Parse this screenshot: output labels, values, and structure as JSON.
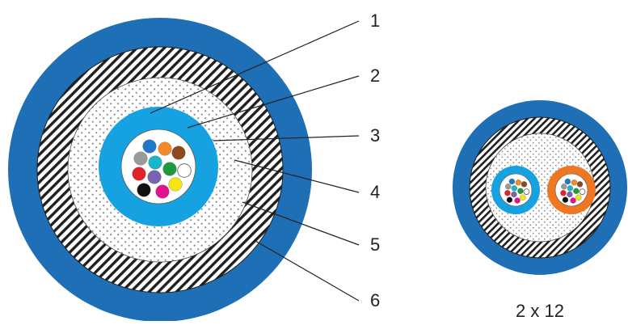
{
  "colors": {
    "jacket": "#1e6fb5",
    "armor_dark": "#1f1f1f",
    "armor_light": "#ffffff",
    "filler_bg": "#ffffff",
    "filler_dot": "#8a8a8a",
    "buffer_tube": "#16a2e0",
    "tube_orange": "#ef7622",
    "core_bg": "#ffffff",
    "leader": "#222222",
    "label_text": "#222222"
  },
  "labels": [
    "1",
    "2",
    "3",
    "4",
    "5",
    "6"
  ],
  "fibers": [
    {
      "name": "blue-fiber",
      "color": "#1f78c8"
    },
    {
      "name": "orange-fiber",
      "color": "#f28a2a"
    },
    {
      "name": "green-fiber",
      "color": "#1e9a3c"
    },
    {
      "name": "brown-fiber",
      "color": "#8b4a1d"
    },
    {
      "name": "slate-fiber",
      "color": "#9a9a9a"
    },
    {
      "name": "white-fiber",
      "color": "#ffffff"
    },
    {
      "name": "red-fiber",
      "color": "#e12228"
    },
    {
      "name": "black-fiber",
      "color": "#111111"
    },
    {
      "name": "yellow-fiber",
      "color": "#f4e513"
    },
    {
      "name": "violet-fiber",
      "color": "#7a61b3"
    },
    {
      "name": "rose-fiber",
      "color": "#e2128c"
    },
    {
      "name": "aqua-fiber",
      "color": "#1bb6c9"
    }
  ],
  "second_cable_caption": "2 x 12"
}
